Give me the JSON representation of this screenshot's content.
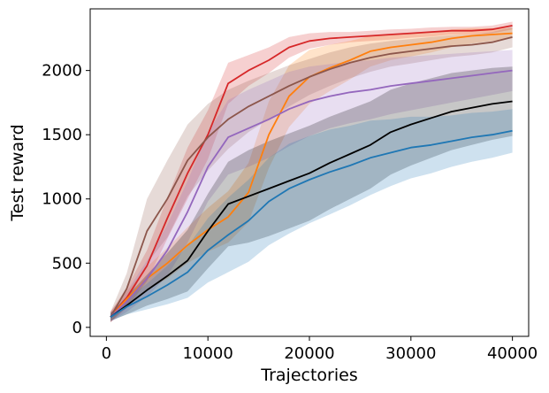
{
  "chart_data": {
    "type": "line",
    "title": "",
    "xlabel": "Trajectories",
    "ylabel": "Test reward",
    "xlim": [
      -1600,
      41600
    ],
    "ylim": [
      -70,
      2480
    ],
    "xticks": [
      0,
      10000,
      20000,
      30000,
      40000
    ],
    "yticks": [
      0,
      500,
      1000,
      1500,
      2000
    ],
    "grid": false,
    "legend": "none",
    "series": [
      {
        "color": "#d62728",
        "x": [
          400,
          2000,
          4000,
          6000,
          8000,
          10000,
          12000,
          14000,
          16000,
          18000,
          20000,
          22000,
          24000,
          26000,
          28000,
          30000,
          32000,
          34000,
          36000,
          38000,
          40000
        ],
        "y": [
          80,
          230,
          480,
          850,
          1200,
          1500,
          1900,
          2000,
          2080,
          2180,
          2230,
          2250,
          2260,
          2270,
          2280,
          2290,
          2300,
          2310,
          2310,
          2320,
          2350
        ],
        "band": [
          40,
          80,
          120,
          160,
          200,
          190,
          160,
          120,
          100,
          80,
          60,
          50,
          40,
          40,
          40,
          35,
          35,
          30,
          30,
          30,
          30
        ]
      },
      {
        "color": "#ff7f0e",
        "x": [
          400,
          2000,
          4000,
          6000,
          8000,
          10000,
          12000,
          14000,
          16000,
          18000,
          20000,
          22000,
          24000,
          26000,
          28000,
          30000,
          32000,
          34000,
          36000,
          38000,
          40000
        ],
        "y": [
          80,
          220,
          380,
          500,
          640,
          760,
          860,
          1050,
          1500,
          1800,
          1950,
          2020,
          2080,
          2150,
          2180,
          2200,
          2220,
          2250,
          2270,
          2280,
          2290
        ],
        "band": [
          40,
          60,
          90,
          120,
          140,
          170,
          200,
          230,
          260,
          240,
          210,
          180,
          150,
          120,
          100,
          90,
          80,
          70,
          60,
          50,
          40
        ]
      },
      {
        "color": "#8c564b",
        "x": [
          400,
          2000,
          4000,
          6000,
          8000,
          10000,
          12000,
          14000,
          16000,
          18000,
          20000,
          22000,
          24000,
          26000,
          28000,
          30000,
          32000,
          34000,
          36000,
          38000,
          40000
        ],
        "y": [
          80,
          300,
          750,
          1000,
          1300,
          1480,
          1620,
          1720,
          1800,
          1880,
          1950,
          2010,
          2060,
          2100,
          2130,
          2150,
          2170,
          2190,
          2200,
          2220,
          2260
        ],
        "band": [
          40,
          120,
          250,
          300,
          280,
          260,
          230,
          200,
          180,
          160,
          140,
          130,
          120,
          110,
          100,
          95,
          90,
          85,
          80,
          80,
          80
        ]
      },
      {
        "color": "#9467bd",
        "x": [
          400,
          2000,
          4000,
          6000,
          8000,
          10000,
          12000,
          14000,
          16000,
          18000,
          20000,
          22000,
          24000,
          26000,
          28000,
          30000,
          32000,
          34000,
          36000,
          38000,
          40000
        ],
        "y": [
          80,
          200,
          380,
          600,
          900,
          1250,
          1480,
          1550,
          1620,
          1700,
          1760,
          1800,
          1830,
          1850,
          1880,
          1900,
          1920,
          1940,
          1960,
          1980,
          2000
        ],
        "band": [
          40,
          80,
          140,
          200,
          240,
          270,
          290,
          300,
          300,
          290,
          270,
          250,
          240,
          230,
          220,
          210,
          200,
          190,
          180,
          170,
          160
        ]
      },
      {
        "color": "#000000",
        "x": [
          400,
          2000,
          4000,
          6000,
          8000,
          10000,
          12000,
          14000,
          16000,
          18000,
          20000,
          22000,
          24000,
          26000,
          28000,
          30000,
          32000,
          34000,
          36000,
          38000,
          40000
        ],
        "y": [
          80,
          170,
          290,
          400,
          520,
          750,
          960,
          1020,
          1080,
          1140,
          1200,
          1280,
          1350,
          1420,
          1520,
          1580,
          1630,
          1680,
          1710,
          1740,
          1760
        ],
        "band": [
          30,
          70,
          120,
          180,
          240,
          290,
          330,
          360,
          370,
          370,
          370,
          360,
          350,
          340,
          330,
          320,
          310,
          300,
          290,
          280,
          270
        ]
      },
      {
        "color": "#1f77b4",
        "x": [
          400,
          2000,
          4000,
          6000,
          8000,
          10000,
          12000,
          14000,
          16000,
          18000,
          20000,
          22000,
          24000,
          26000,
          28000,
          30000,
          32000,
          34000,
          36000,
          38000,
          40000
        ],
        "y": [
          80,
          160,
          240,
          330,
          430,
          600,
          720,
          830,
          980,
          1080,
          1150,
          1210,
          1260,
          1320,
          1360,
          1400,
          1420,
          1450,
          1480,
          1500,
          1530
        ],
        "band": [
          30,
          60,
          100,
          150,
          200,
          250,
          290,
          320,
          340,
          350,
          340,
          330,
          310,
          290,
          260,
          240,
          220,
          200,
          190,
          180,
          170
        ]
      }
    ]
  }
}
